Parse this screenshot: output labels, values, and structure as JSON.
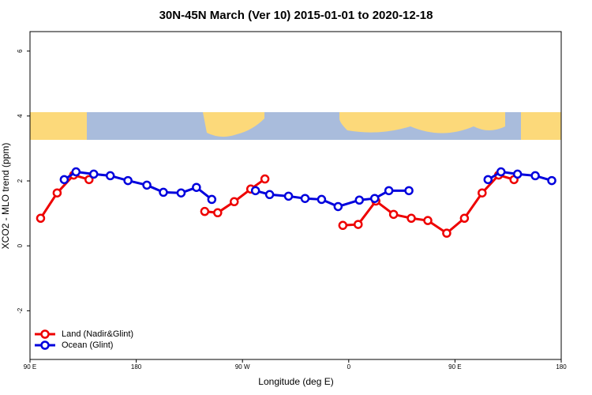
{
  "chart_data": {
    "type": "line",
    "title": "30N-45N March (Ver 10)   2015-01-01 to 2020-12-18",
    "x_label": "Longitude (deg E)",
    "y_label": "XCO2 - MLO trend (ppm)",
    "xlim": [
      90,
      540
    ],
    "ylim": [
      -3.5,
      6.6
    ],
    "xticks": [
      {
        "value": 90,
        "label": "90 E"
      },
      180,
      {
        "value": 270,
        "label": "90 W"
      },
      {
        "value": 360,
        "label": "0"
      },
      {
        "value": 450,
        "label": "90 E"
      },
      {
        "value": 540,
        "label": "180"
      }
    ],
    "yticks": [
      -2,
      0,
      2,
      4,
      6
    ],
    "legend": "bottom-left",
    "series": [
      {
        "name": "Land (Nadir&Glint)",
        "color": "#ee0000",
        "x": [
          99,
          113,
          127,
          140,
          null,
          238,
          249,
          263,
          277,
          289,
          null,
          355,
          368,
          383,
          398,
          413,
          427,
          443,
          458,
          473,
          487,
          500
        ],
        "values": [
          0.85,
          1.63,
          2.18,
          2.04,
          null,
          1.06,
          1.02,
          1.36,
          1.75,
          2.06,
          null,
          0.63,
          0.66,
          1.38,
          0.97,
          0.85,
          0.78,
          0.39,
          0.85,
          1.63,
          2.18,
          2.04
        ]
      },
      {
        "name": "Ocean (Glint)",
        "color": "#0000dd",
        "x": [
          119,
          129,
          144,
          158,
          173,
          189,
          203,
          218,
          231,
          244,
          null,
          281,
          293,
          309,
          323,
          337,
          351,
          369,
          382,
          394,
          411,
          null,
          478,
          489,
          503,
          518,
          532
        ],
        "values": [
          2.04,
          2.28,
          2.21,
          2.16,
          2.01,
          1.87,
          1.65,
          1.63,
          1.8,
          1.43,
          null,
          1.7,
          1.58,
          1.53,
          1.46,
          1.43,
          1.21,
          1.41,
          1.46,
          1.7,
          1.7,
          null,
          2.04,
          2.28,
          2.21,
          2.16,
          2.01
        ]
      }
    ]
  }
}
